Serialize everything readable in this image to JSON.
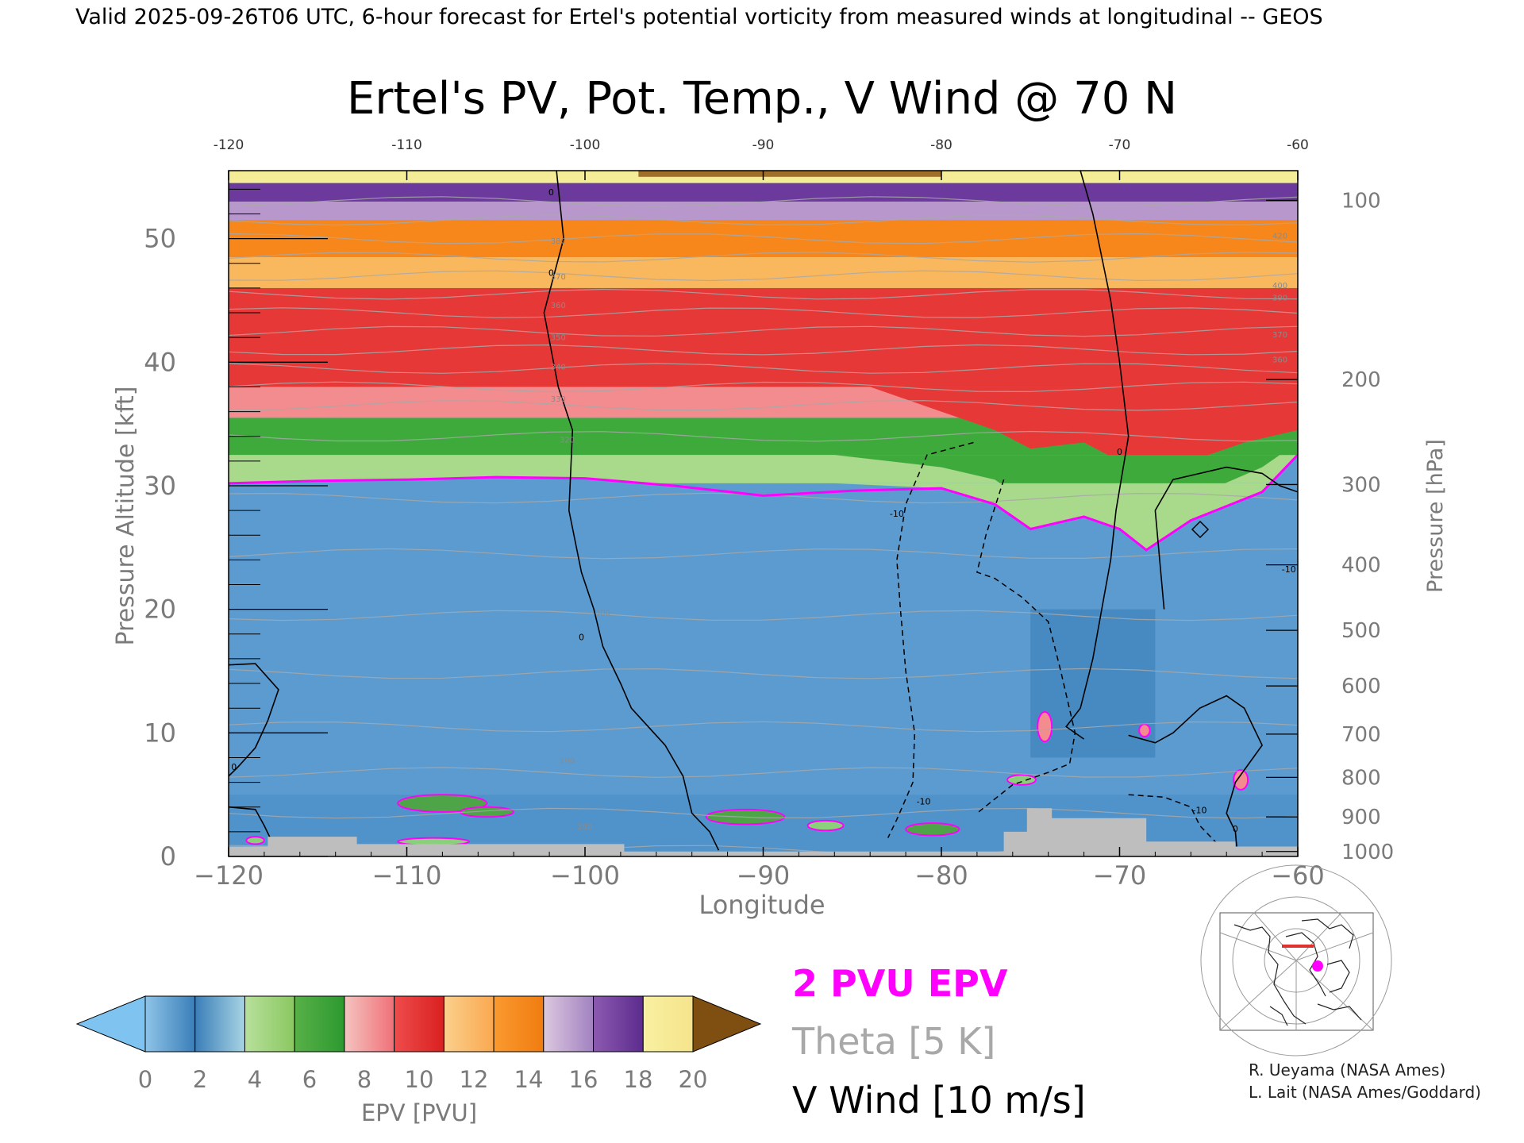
{
  "header": {
    "valid_line": "Valid 2025-09-26T06 UTC, 6-hour forecast for Ertel's potential vorticity from measured winds at longitudinal -- GEOS"
  },
  "chart_data": {
    "type": "heatmap",
    "title": "Ertel's PV, Pot. Temp., V Wind @ 70 N",
    "xlabel": "Longitude",
    "ylabel_left": "Pressure Altitude [kft]",
    "ylabel_right": "Pressure [hPa]",
    "xlim": [
      -120,
      -60
    ],
    "ylim_kft": [
      0,
      55.5
    ],
    "x_ticks": [
      "-120",
      "-110",
      "-100",
      "-90",
      "-80",
      "-70",
      "-60"
    ],
    "x_tick_values": [
      -120,
      -110,
      -100,
      -90,
      -80,
      -70,
      -60
    ],
    "y_ticks": [
      "0",
      "10",
      "20",
      "30",
      "40",
      "50"
    ],
    "y_tick_values": [
      0,
      10,
      20,
      30,
      40,
      50
    ],
    "pressure_ticks": [
      "100",
      "200",
      "300",
      "400",
      "500",
      "600",
      "700",
      "800",
      "900",
      "1000"
    ],
    "pressure_tick_kft": [
      53.1,
      38.6,
      30.1,
      23.6,
      18.3,
      13.8,
      9.9,
      6.4,
      3.2,
      0.4
    ],
    "colorbar": {
      "label": "EPV [PVU]",
      "ticks": [
        "0",
        "2",
        "4",
        "6",
        "8",
        "10",
        "12",
        "14",
        "16",
        "18",
        "20"
      ],
      "under_color": "#7fc4f0",
      "over_color": "#7f4f12",
      "segments": [
        [
          "#8ec4e8",
          "#3a7eb8"
        ],
        [
          "#3a7eb8",
          "#a8d4e4"
        ],
        [
          "#b8e09c",
          "#8ac860"
        ],
        [
          "#58b048",
          "#2c9a30"
        ],
        [
          "#f4c4c0",
          "#f07078"
        ],
        [
          "#ee4c4c",
          "#da2020"
        ],
        [
          "#fbd08c",
          "#faa850"
        ],
        [
          "#fa9a30",
          "#f07c10"
        ],
        [
          "#dcc8e0",
          "#a282c0"
        ],
        [
          "#8c5ab0",
          "#5c2c8e"
        ],
        [
          "#f8f0a0",
          "#f6e48c"
        ]
      ]
    },
    "pv_layers_kft": [
      {
        "from": 0,
        "to": 30.2,
        "pv": "0-2",
        "color": "#5b9bd0"
      },
      {
        "from": 30.2,
        "to": 32.5,
        "pv": "2-4",
        "color": "#a9d98a"
      },
      {
        "from": 32.5,
        "to": 35.5,
        "pv": "4-6",
        "color": "#3faa3c"
      },
      {
        "from": 35.5,
        "to": 38,
        "pv": "6-8",
        "color": "#f28c8e"
      },
      {
        "from": 38,
        "to": 46,
        "pv": "8-10",
        "color": "#e73838"
      },
      {
        "from": 46,
        "to": 48.5,
        "pv": "10-12",
        "color": "#f9b85e"
      },
      {
        "from": 48.5,
        "to": 51.5,
        "pv": "12-14",
        "color": "#f7871a"
      },
      {
        "from": 51.5,
        "to": 53,
        "pv": "14-16",
        "color": "#b898cc"
      },
      {
        "from": 53,
        "to": 54.5,
        "pv": "16-18",
        "color": "#6c3a9c"
      },
      {
        "from": 54.5,
        "to": 55.5,
        "pv": "18-20",
        "color": "#f4ec96"
      }
    ],
    "pvu2_contour": {
      "lon": [
        -120,
        -115,
        -110,
        -105,
        -100,
        -95,
        -90,
        -85,
        -80,
        -77,
        -75,
        -72,
        -70,
        -68.5,
        -66,
        -62,
        -60
      ],
      "kft": [
        30.2,
        30.4,
        30.5,
        30.7,
        30.6,
        30.0,
        29.2,
        29.6,
        29.8,
        28.5,
        26.5,
        27.5,
        26.5,
        24.8,
        27.2,
        29.5,
        32.5
      ]
    },
    "tropopause_examples": [],
    "v_wind_zero_lines": [
      {
        "lon": [
          -101.6,
          -101.2,
          -102.3,
          -101.5,
          -100.7,
          -100.9,
          -100.2,
          -99.5,
          -99.0,
          -98.0,
          -97.4,
          -95.5,
          -94.5,
          -94.0,
          -93.0,
          -92.5
        ],
        "kft": [
          55.5,
          50,
          44,
          38,
          34.5,
          28,
          23,
          20,
          17,
          14,
          12,
          9,
          6.5,
          3.5,
          2,
          0.5
        ]
      },
      {
        "lon": [
          -72.2,
          -71.5,
          -70.5,
          -70,
          -69.5,
          -70.2,
          -70.5,
          -71,
          -71.5,
          -72.2,
          -73,
          -72
        ],
        "kft": [
          55.5,
          52,
          45,
          40,
          34,
          28,
          24,
          20,
          16,
          12,
          10.5,
          9.5
        ]
      },
      {
        "lon": [
          -69.5,
          -68,
          -67,
          -65.5,
          -64,
          -63,
          -62,
          -63.5,
          -64,
          -63.5,
          -63.4
        ],
        "kft": [
          9.8,
          9.2,
          10,
          12,
          13,
          12,
          9,
          6,
          3.5,
          2,
          0.3
        ]
      },
      {
        "lon": [
          -67.5,
          -68,
          -67,
          -64,
          -62,
          -61,
          -60
        ],
        "kft": [
          20,
          28,
          30.5,
          31.5,
          31,
          30,
          29.5
        ]
      },
      {
        "lon": [
          -120,
          -118.5,
          -117.2,
          -117.8,
          -118.5,
          -119.5,
          -120
        ],
        "kft": [
          15.5,
          15.6,
          13.5,
          11,
          8.8,
          7.2,
          6.5
        ]
      },
      {
        "lon": [
          -120,
          -118.5,
          -118,
          -117.5
        ],
        "kft": [
          4,
          3.8,
          2.5,
          1
        ]
      }
    ],
    "v_wind_neg10_lines": [
      {
        "lon": [
          -78.2,
          -80.8,
          -82.0,
          -82.5,
          -82.3,
          -82.0,
          -81.5,
          -81.6,
          -82.5,
          -83.0
        ],
        "kft": [
          33.5,
          32.5,
          28.5,
          24,
          20,
          15,
          10,
          6,
          3,
          1.5
        ]
      },
      {
        "lon": [
          -76.5,
          -77.5,
          -78.0,
          -77,
          -75.5,
          -74.0,
          -73.3,
          -72.5,
          -72.8,
          -74.0,
          -76,
          -78.0
        ],
        "kft": [
          30.5,
          26,
          23,
          22.5,
          21,
          19,
          15,
          10,
          7.5,
          6.8,
          5.8,
          3.5
        ]
      },
      {
        "lon": [
          -69.5,
          -67.5,
          -66,
          -65.5,
          -64.5
        ],
        "kft": [
          5,
          4.8,
          4,
          2.5,
          1
        ]
      }
    ],
    "theta_contours_kft": [
      0.5,
      3.5,
      6.8,
      10.5,
      14.8,
      19.5,
      24.5,
      29,
      34,
      36.5,
      38,
      39.5,
      41,
      42.5,
      44,
      45.5,
      47,
      48.5,
      50,
      51.5,
      53
    ],
    "theta_labels": [
      {
        "text": "280",
        "lon": -100,
        "kft": 2.2
      },
      {
        "text": "290",
        "lon": -101,
        "kft": 7.5
      },
      {
        "text": "300",
        "lon": -99,
        "kft": 19.5
      },
      {
        "text": "320",
        "lon": -101,
        "kft": 33.5
      },
      {
        "text": "330",
        "lon": -101.5,
        "kft": 36.8
      },
      {
        "text": "340",
        "lon": -101.5,
        "kft": 39.4
      },
      {
        "text": "350",
        "lon": -101.5,
        "kft": 41.8
      },
      {
        "text": "360",
        "lon": -101.5,
        "kft": 44.4
      },
      {
        "text": "370",
        "lon": -101.5,
        "kft": 46.7
      },
      {
        "text": "380",
        "lon": -101.5,
        "kft": 49.6
      },
      {
        "text": "420",
        "lon": -61,
        "kft": 50
      },
      {
        "text": "400",
        "lon": -61,
        "kft": 46
      },
      {
        "text": "390",
        "lon": -61,
        "kft": 45
      },
      {
        "text": "370",
        "lon": -61,
        "kft": 42
      },
      {
        "text": "360",
        "lon": -61,
        "kft": 40
      }
    ],
    "wind_labels": [
      {
        "text": "0",
        "lon": -101.9,
        "kft": 53.5
      },
      {
        "text": "0",
        "lon": -101.9,
        "kft": 47
      },
      {
        "text": "0",
        "lon": -100.2,
        "kft": 17.5
      },
      {
        "text": "0",
        "lon": -70,
        "kft": 32.5
      },
      {
        "text": "0",
        "lon": -63.5,
        "kft": 2
      },
      {
        "text": "0",
        "lon": -119.7,
        "kft": 7
      },
      {
        "text": "-10",
        "lon": -82.5,
        "kft": 27.5
      },
      {
        "text": "-10",
        "lon": -81,
        "kft": 4.2
      },
      {
        "text": "-10",
        "lon": -65.5,
        "kft": 3.5
      },
      {
        "text": "-10",
        "lon": -60.5,
        "kft": 23
      }
    ],
    "pv_patches": [
      {
        "lon": -108,
        "kft": 4.3,
        "rx": 2.5,
        "ry": 0.7,
        "color": "#4ea548"
      },
      {
        "lon": -105.5,
        "kft": 3.6,
        "rx": 1.5,
        "ry": 0.4,
        "color": "#4ea548"
      },
      {
        "lon": -91,
        "kft": 3.2,
        "rx": 2.2,
        "ry": 0.6,
        "color": "#4ea548"
      },
      {
        "lon": -86.5,
        "kft": 2.5,
        "rx": 1.0,
        "ry": 0.4,
        "color": "#8ad07a"
      },
      {
        "lon": -80.5,
        "kft": 2.2,
        "rx": 1.5,
        "ry": 0.5,
        "color": "#4ea548"
      },
      {
        "lon": -108.5,
        "kft": 1.2,
        "rx": 2,
        "ry": 0.3,
        "color": "#8ad07a"
      },
      {
        "lon": -75.5,
        "kft": 6.2,
        "rx": 0.8,
        "ry": 0.4,
        "color": "#8ad07a"
      },
      {
        "lon": -74.2,
        "kft": 10.5,
        "rx": 0.4,
        "ry": 1.2,
        "color": "#f28c8e"
      },
      {
        "lon": -68.6,
        "kft": 10.2,
        "rx": 0.3,
        "ry": 0.5,
        "color": "#f28c8e"
      },
      {
        "lon": -63.2,
        "kft": 6.2,
        "rx": 0.4,
        "ry": 0.8,
        "color": "#f28c8e"
      },
      {
        "lon": -118.5,
        "kft": 1.3,
        "rx": 0.5,
        "ry": 0.3,
        "color": "#8ad07a"
      }
    ],
    "terrain": {
      "lon": [
        -120,
        -117.8,
        -117.8,
        -112.8,
        -112.8,
        -97.8,
        -97.8,
        -76.5,
        -76.5,
        -75.2,
        -75.2,
        -73.8,
        -73.8,
        -68.5,
        -68.5,
        -63.5,
        -63.5,
        -60
      ],
      "kft": [
        0.8,
        0.8,
        1.6,
        1.6,
        1.0,
        1.0,
        0.4,
        0.4,
        2.0,
        2.0,
        3.9,
        3.9,
        3.1,
        3.1,
        1.2,
        1.2,
        0.8,
        0.8
      ]
    }
  },
  "legend": {
    "pvu": "2 PVU EPV",
    "theta": "Theta [5 K]",
    "vwind": "V Wind [10 m/s]",
    "pvu_color": "#ff00ff",
    "theta_color": "#a8a8a8",
    "vwind_color": "#000000"
  },
  "credits": {
    "line1": "R. Ueyama (NASA Ames)",
    "line2": "L. Lait (NASA Ames/Goddard)"
  },
  "locator_map": {
    "marker_color": "#ff00ff",
    "section_color": "#e03030"
  }
}
